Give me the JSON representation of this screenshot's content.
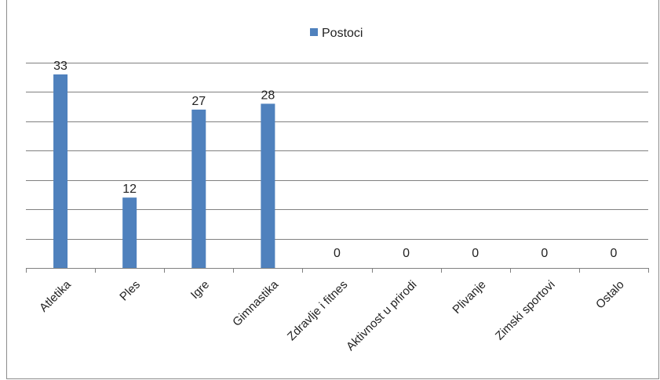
{
  "chart_data": {
    "type": "bar",
    "categories": [
      "Atletika",
      "Ples",
      "Igre",
      "Gimnastika",
      "Zdravlje i fitnes",
      "Aktivnost u prirodi",
      "Plivanje",
      "Zimski sportovi",
      "Ostalo"
    ],
    "series": [
      {
        "name": "Postoci",
        "values": [
          33,
          12,
          27,
          28,
          0,
          0,
          0,
          0,
          0
        ],
        "color": "#4F81BD"
      }
    ],
    "ylim": [
      0,
      35
    ],
    "grid": true,
    "legend": "top-center",
    "title": "",
    "xlabel": "",
    "ylabel": ""
  }
}
